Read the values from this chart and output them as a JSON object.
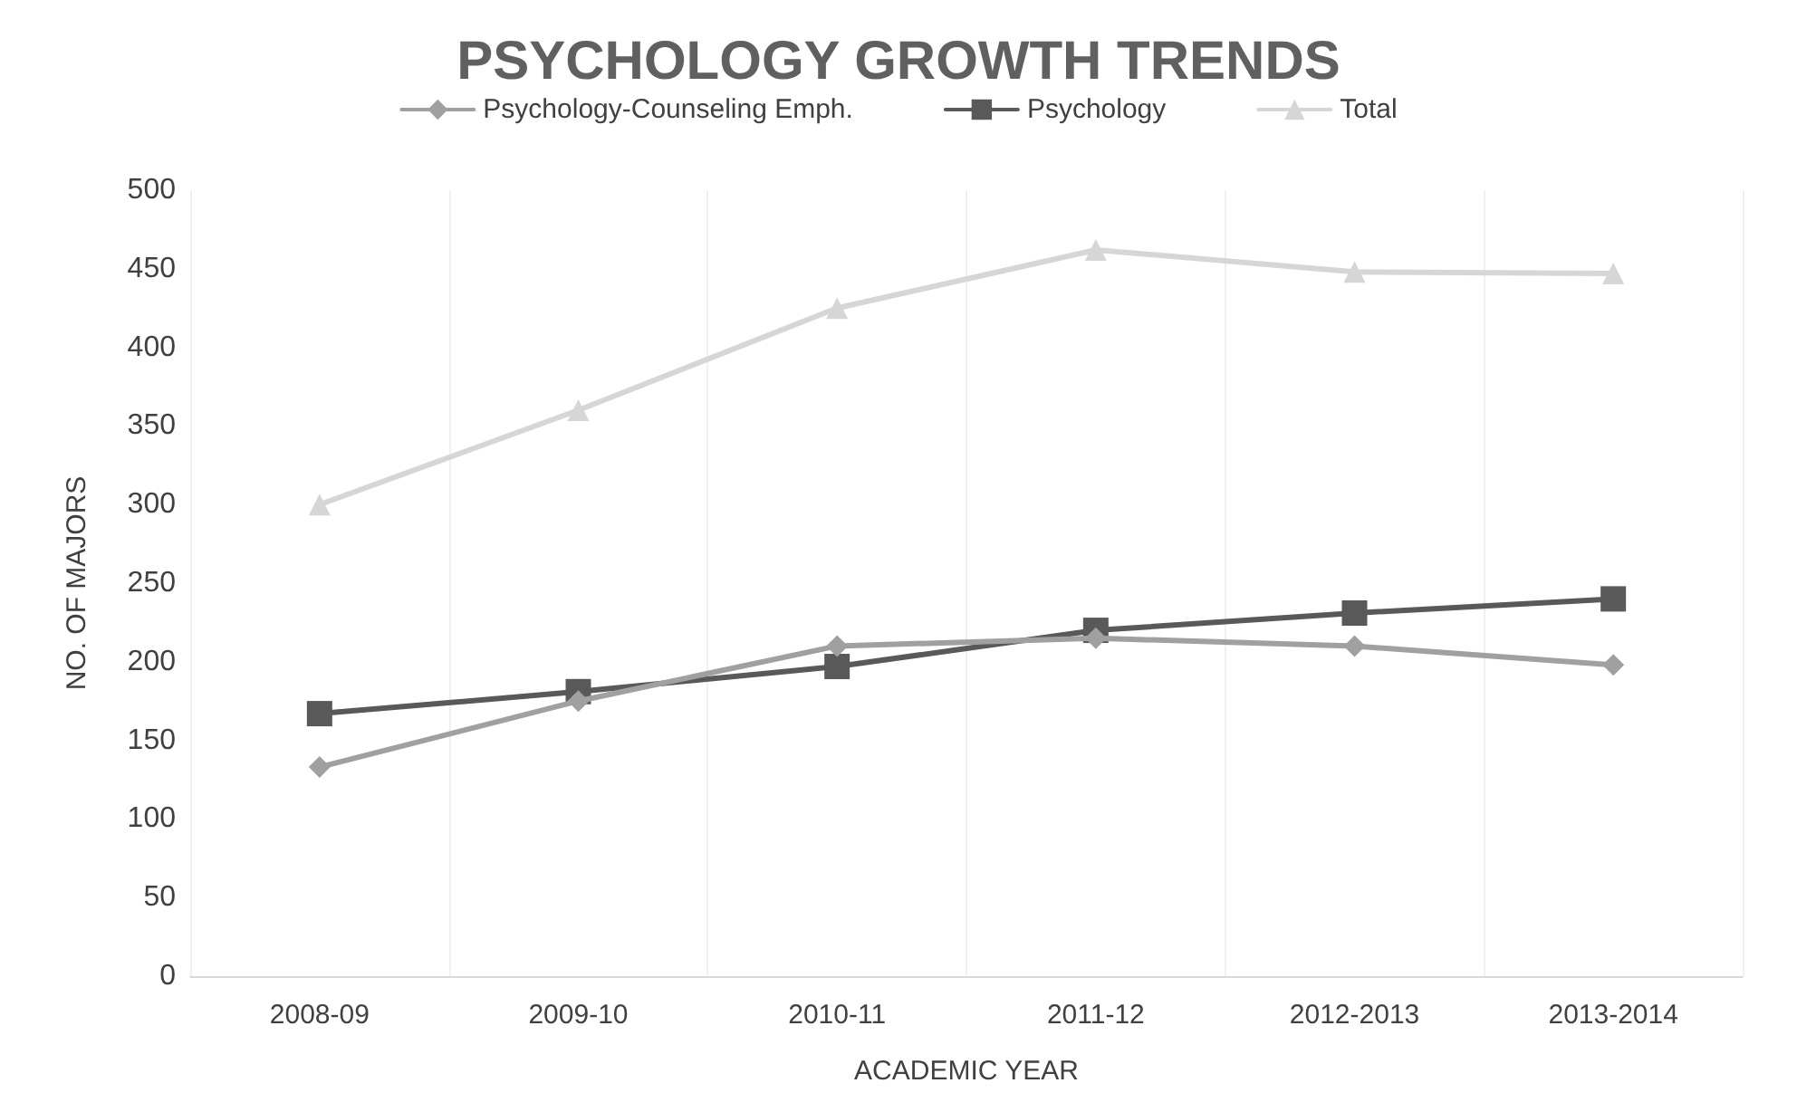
{
  "chart_data": {
    "type": "line",
    "title": "PSYCHOLOGY GROWTH TRENDS",
    "xlabel": "ACADEMIC YEAR",
    "ylabel": "NO. OF MAJORS",
    "categories": [
      "2008-09",
      "2009-10",
      "2010-11",
      "2011-12",
      "2012-2013",
      "2013-2014"
    ],
    "series": [
      {
        "name": "Psychology-Counseling Emph.",
        "color": "#a0a0a0",
        "marker": "diamond",
        "values": [
          133,
          175,
          210,
          215,
          210,
          198
        ]
      },
      {
        "name": "Psychology",
        "color": "#595959",
        "marker": "square",
        "values": [
          167,
          181,
          197,
          220,
          231,
          240
        ]
      },
      {
        "name": "Total",
        "color": "#d6d6d6",
        "marker": "triangle",
        "values": [
          300,
          360,
          425,
          462,
          448,
          447
        ]
      }
    ],
    "ylim": [
      0,
      500
    ],
    "yticks": [
      0,
      50,
      100,
      150,
      200,
      250,
      300,
      350,
      400,
      450,
      500
    ],
    "grid": "x",
    "legend": "top"
  }
}
